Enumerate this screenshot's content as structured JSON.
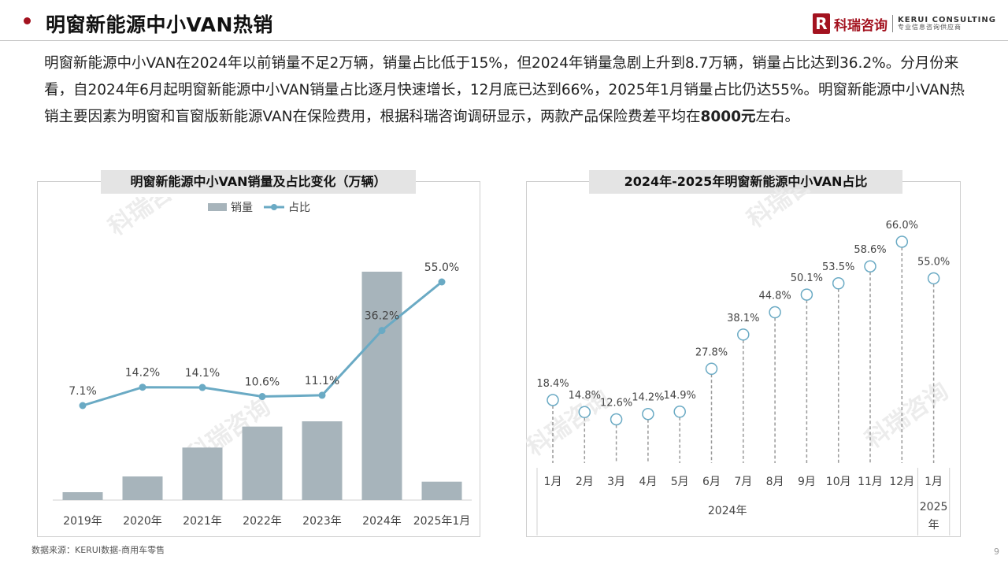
{
  "header": {
    "title": "明窗新能源中小VAN热销",
    "logo_mark": "R",
    "logo_cn": "科瑞咨询",
    "logo_en": "KERUI CONSULTING",
    "logo_tagline": "专业信息咨询供应商"
  },
  "intro": {
    "text_before_bold": "明窗新能源中小VAN在2024年以前销量不足2万辆，销量占比低于15%，但2024年销量急剧上升到8.7万辆，销量占比达到36.2%。分月份来看，自2024年6月起明窗新能源中小VAN销量占比逐月快速增长，12月底已达到66%，2025年1月销量占比仍达55%。明窗新能源中小VAN热销主要因素为明窗和盲窗版新能源VAN在保险费用，根据科瑞咨询调研显示，两款产品保险费差平均在",
    "bold": "8000元",
    "text_after_bold": "左右。"
  },
  "colors": {
    "accent": "#a3121f",
    "bar": "#a7b4bb",
    "line": "#6aaac4",
    "stem": "#999999"
  },
  "watermark": "科瑞咨询",
  "chart_data": [
    {
      "type": "bar",
      "title": "明窗新能源中小VAN销量及占比变化（万辆）",
      "categories": [
        "2019年",
        "2020年",
        "2021年",
        "2022年",
        "2023年",
        "2024年",
        "2025年1月"
      ],
      "legend": [
        "销量",
        "占比"
      ],
      "legend_position": "top",
      "series": [
        {
          "name": "销量",
          "type": "bar",
          "values": [
            0.3,
            0.9,
            2.0,
            2.8,
            3.0,
            8.7,
            0.7
          ]
        },
        {
          "name": "占比",
          "type": "line",
          "values": [
            7.1,
            14.2,
            14.1,
            10.6,
            11.1,
            36.2,
            55.0
          ],
          "labels": [
            "7.1%",
            "14.2%",
            "14.1%",
            "10.6%",
            "11.1%",
            "36.2%",
            "55.0%"
          ]
        }
      ],
      "grid": false
    },
    {
      "type": "scatter",
      "title": "2024年-2025年明窗新能源中小VAN占比",
      "categories": [
        "1月",
        "2月",
        "3月",
        "4月",
        "5月",
        "6月",
        "7月",
        "8月",
        "9月",
        "10月",
        "11月",
        "12月",
        "1月"
      ],
      "groups": [
        {
          "label": "2024年",
          "count": 12
        },
        {
          "label": "2025年",
          "count": 1
        }
      ],
      "values": [
        18.4,
        14.8,
        12.6,
        14.2,
        14.9,
        27.8,
        38.1,
        44.8,
        50.1,
        53.5,
        58.6,
        66.0,
        55.0
      ],
      "labels": [
        "18.4%",
        "14.8%",
        "12.6%",
        "14.2%",
        "14.9%",
        "27.8%",
        "38.1%",
        "44.8%",
        "50.1%",
        "53.5%",
        "58.6%",
        "66.0%",
        "55.0%"
      ],
      "grid": false
    }
  ],
  "footer": {
    "source": "数据来源：KERUI数据-商用车零售",
    "page": "9"
  }
}
